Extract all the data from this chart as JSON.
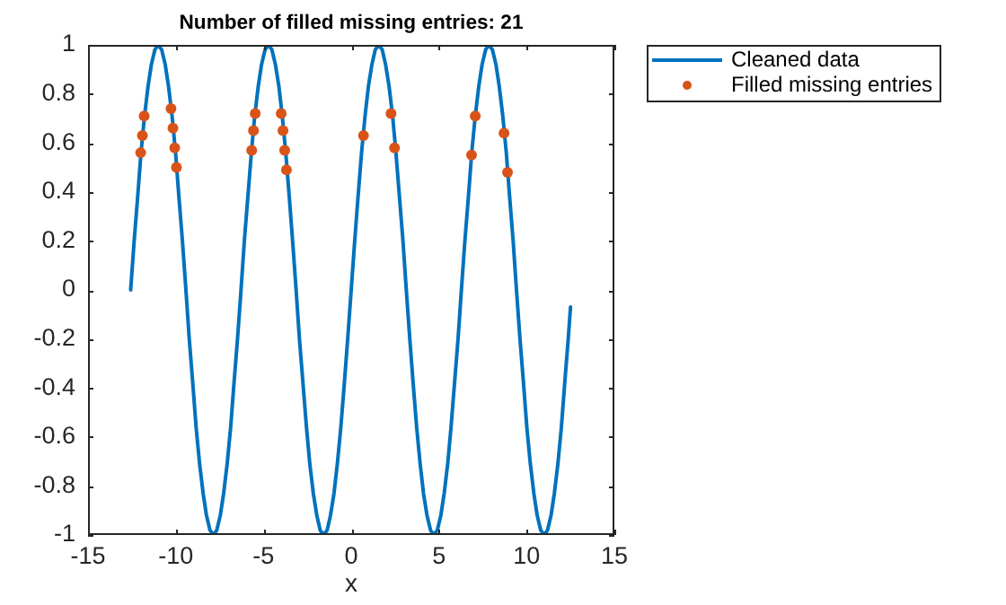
{
  "chart_data": {
    "type": "line",
    "title": "Number of filled missing entries: 21",
    "xlabel": "x",
    "xlim": [
      -15,
      15
    ],
    "xticks": [
      -15,
      -10,
      -5,
      0,
      5,
      10,
      15
    ],
    "ylim": [
      -1,
      1
    ],
    "yticks": [
      -1,
      -0.8,
      -0.6,
      -0.4,
      -0.2,
      0,
      0.2,
      0.4,
      0.6,
      0.8,
      1
    ],
    "legend": "top right",
    "series": [
      {
        "name": "Cleaned data",
        "color": "#0072bd",
        "x": [
          -12.57,
          -12.37,
          -12.17,
          -11.98,
          -11.78,
          -11.58,
          -11.39,
          -11.19,
          -11.0,
          -10.8,
          -10.6,
          -10.41,
          -10.21,
          -10.01,
          -9.82,
          -9.62,
          -9.42,
          -9.23,
          -9.03,
          -8.84,
          -8.64,
          -8.44,
          -8.25,
          -8.05,
          -7.85,
          -7.66,
          -7.46,
          -7.27,
          -7.07,
          -6.87,
          -6.68,
          -6.48,
          -6.28,
          -6.09,
          -5.89,
          -5.69,
          -5.5,
          -5.3,
          -5.11,
          -4.91,
          -4.71,
          -4.52,
          -4.32,
          -4.12,
          -3.93,
          -3.73,
          -3.53,
          -3.34,
          -3.14,
          -2.95,
          -2.75,
          -2.55,
          -2.36,
          -2.16,
          -1.96,
          -1.77,
          -1.57,
          -1.37,
          -1.18,
          -0.98,
          -0.79,
          -0.59,
          -0.39,
          -0.2,
          0,
          0.2,
          0.39,
          0.59,
          0.79,
          0.98,
          1.18,
          1.37,
          1.57,
          1.77,
          1.96,
          2.16,
          2.36,
          2.55,
          2.75,
          2.95,
          3.14,
          3.34,
          3.53,
          3.73,
          3.93,
          4.12,
          4.32,
          4.52,
          4.71,
          4.91,
          5.11,
          5.3,
          5.5,
          5.69,
          5.89,
          6.09,
          6.28,
          6.48,
          6.68,
          6.87,
          7.07,
          7.27,
          7.46,
          7.66,
          7.85,
          8.05,
          8.25,
          8.44,
          8.64,
          8.84,
          9.03,
          9.23,
          9.42,
          9.62,
          9.82,
          10.01,
          10.21,
          10.41,
          10.6,
          10.8,
          11.0,
          11.19,
          11.39,
          11.58,
          11.78,
          11.98,
          12.17,
          12.37,
          12.5
        ],
        "values": [
          0,
          0.2,
          0.38,
          0.56,
          0.71,
          0.83,
          0.92,
          0.98,
          1,
          0.98,
          0.92,
          0.83,
          0.71,
          0.56,
          0.38,
          0.2,
          0,
          -0.2,
          -0.38,
          -0.56,
          -0.71,
          -0.83,
          -0.92,
          -0.98,
          -1,
          -0.98,
          -0.92,
          -0.83,
          -0.71,
          -0.56,
          -0.38,
          -0.2,
          0,
          0.2,
          0.38,
          0.56,
          0.71,
          0.83,
          0.92,
          0.98,
          1,
          0.98,
          0.92,
          0.83,
          0.71,
          0.56,
          0.38,
          0.2,
          0,
          -0.2,
          -0.38,
          -0.56,
          -0.71,
          -0.83,
          -0.92,
          -0.98,
          -1,
          -0.98,
          -0.92,
          -0.83,
          -0.71,
          -0.56,
          -0.38,
          -0.2,
          0,
          0.2,
          0.38,
          0.56,
          0.71,
          0.83,
          0.92,
          0.98,
          1,
          0.98,
          0.92,
          0.83,
          0.71,
          0.56,
          0.38,
          0.2,
          0,
          -0.2,
          -0.38,
          -0.56,
          -0.71,
          -0.83,
          -0.92,
          -0.98,
          -1,
          -0.98,
          -0.92,
          -0.83,
          -0.71,
          -0.56,
          -0.38,
          -0.2,
          0,
          0.2,
          0.38,
          0.56,
          0.71,
          0.83,
          0.92,
          0.98,
          1,
          0.98,
          0.92,
          0.83,
          0.71,
          0.56,
          0.38,
          0.2,
          0,
          -0.2,
          -0.38,
          -0.56,
          -0.71,
          -0.83,
          -0.92,
          -0.98,
          -1,
          -0.98,
          -0.92,
          -0.83,
          -0.71,
          -0.56,
          -0.38,
          -0.2,
          -0.07
        ]
      },
      {
        "name": "Filled missing entries",
        "type": "scatter",
        "marker": "circle",
        "color": "#d95319",
        "x": [
          -12.0,
          -11.9,
          -11.8,
          -10.27,
          -10.16,
          -10.06,
          -9.96,
          -5.67,
          -5.57,
          -5.47,
          -3.99,
          -3.89,
          -3.79,
          -3.69,
          0.7,
          2.27,
          2.47,
          6.86,
          7.07,
          8.71,
          8.91
        ],
        "values": [
          0.56,
          0.63,
          0.71,
          0.74,
          0.66,
          0.58,
          0.5,
          0.57,
          0.65,
          0.72,
          0.72,
          0.65,
          0.57,
          0.49,
          0.63,
          0.72,
          0.58,
          0.55,
          0.71,
          0.64,
          0.48
        ]
      }
    ]
  }
}
